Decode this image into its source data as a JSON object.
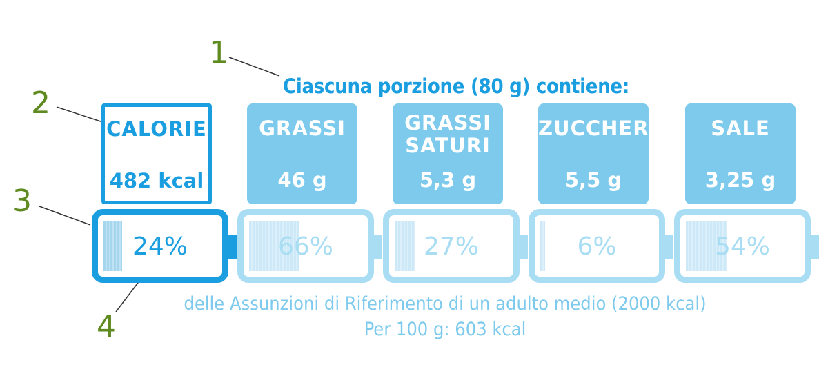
{
  "annotations": [
    "1",
    "2",
    "3",
    "4"
  ],
  "heading": "Ciascuna porzione (80 g) contiene:",
  "nutrients": [
    {
      "name": "CALORIE",
      "value": "482 kcal",
      "percent_label": "24%",
      "percent": 24,
      "highlighted": true
    },
    {
      "name": "GRASSI",
      "value": "46 g",
      "percent_label": "66%",
      "percent": 66,
      "highlighted": false
    },
    {
      "name": "GRASSI\nSATURI",
      "value": "5,3 g",
      "percent_label": "27%",
      "percent": 27,
      "highlighted": false
    },
    {
      "name": "ZUCCHERI",
      "value": "5,5 g",
      "percent_label": "6%",
      "percent": 6,
      "highlighted": false
    },
    {
      "name": "SALE",
      "value": "3,25 g",
      "percent_label": "54%",
      "percent": 54,
      "highlighted": false
    }
  ],
  "footer": {
    "line1": "delle Assunzioni di Riferimento di un adulto medio (2000 kcal)",
    "line2": "Per 100 g: 603 kcal"
  },
  "colors": {
    "primary_blue": "#1a9ee0",
    "light_blue": "#7dcaed",
    "pale_blue": "#a8ddf4",
    "annotation_green": "#5e8a20"
  }
}
